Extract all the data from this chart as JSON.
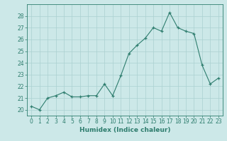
{
  "x": [
    0,
    1,
    2,
    3,
    4,
    5,
    6,
    7,
    8,
    9,
    10,
    11,
    12,
    13,
    14,
    15,
    16,
    17,
    18,
    19,
    20,
    21,
    22,
    23
  ],
  "y": [
    20.3,
    20.0,
    21.0,
    21.2,
    21.5,
    21.1,
    21.1,
    21.2,
    21.2,
    22.2,
    21.2,
    22.9,
    24.8,
    25.5,
    26.1,
    27.0,
    26.7,
    28.3,
    27.0,
    26.7,
    26.5,
    23.8,
    22.2,
    22.7
  ],
  "line_color": "#2e7d6e",
  "marker": "+",
  "bg_color": "#cce8e8",
  "grid_color": "#aad0d0",
  "xlabel": "Humidex (Indice chaleur)",
  "ylim": [
    19.5,
    29.0
  ],
  "xlim": [
    -0.5,
    23.5
  ],
  "yticks": [
    20,
    21,
    22,
    23,
    24,
    25,
    26,
    27,
    28
  ],
  "xticks": [
    0,
    1,
    2,
    3,
    4,
    5,
    6,
    7,
    8,
    9,
    10,
    11,
    12,
    13,
    14,
    15,
    16,
    17,
    18,
    19,
    20,
    21,
    22,
    23
  ],
  "tick_fontsize": 5.5,
  "label_fontsize": 6.5
}
